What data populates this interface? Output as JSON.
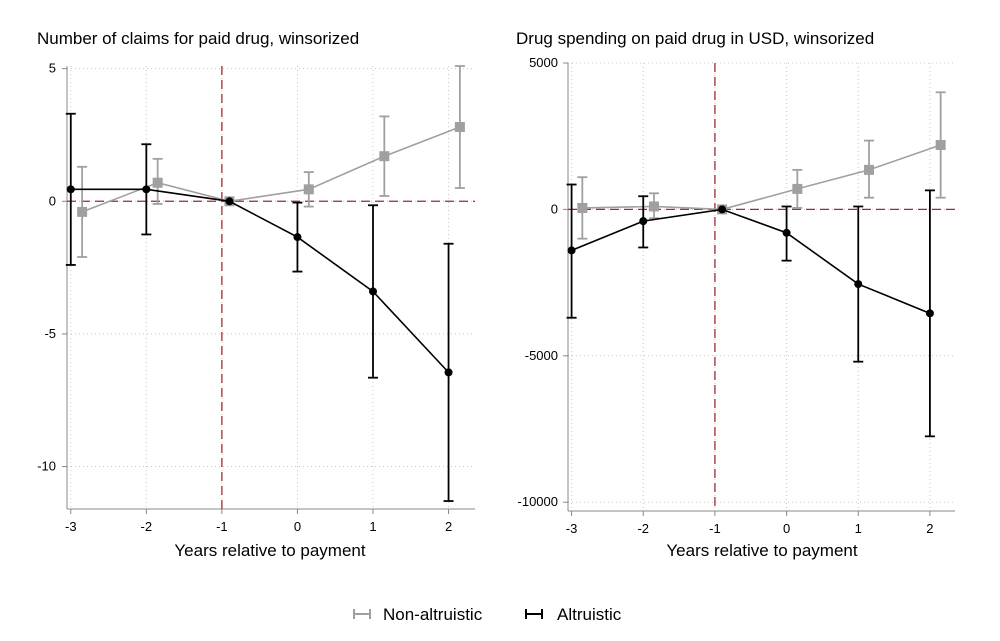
{
  "chart_data": [
    {
      "type": "line",
      "title": "Number of claims for paid drug, winsorized",
      "xlabel": "Years relative to payment",
      "ylabel": "",
      "x": [
        -3,
        -2,
        -1,
        0,
        1,
        2
      ],
      "x_ticks": [
        "-3",
        "-2",
        "-1",
        "0",
        "1",
        "2"
      ],
      "y_ticks": [
        5,
        0,
        -5,
        -10
      ],
      "y_tick_labels": [
        "5",
        "0",
        "-5",
        "-10"
      ],
      "ylim": [
        -11.6,
        5.1
      ],
      "xlim": [
        -3.05,
        2.35
      ],
      "reference_lines": {
        "x": -1,
        "y": 0
      },
      "grid": true,
      "series": [
        {
          "name": "Non-altruistic",
          "color": "#a0a0a0",
          "marker": "square",
          "x_offset": 0.15,
          "values": [
            -0.4,
            0.7,
            0.0,
            0.45,
            1.7,
            2.8
          ],
          "ci_low": [
            -2.1,
            -0.1,
            null,
            -0.2,
            0.2,
            0.5
          ],
          "ci_high": [
            1.3,
            1.6,
            null,
            1.1,
            3.2,
            5.1
          ]
        },
        {
          "name": "Altruistic",
          "color": "#000000",
          "marker": "circle",
          "x_offset": 0.0,
          "values": [
            0.45,
            0.45,
            0.0,
            -1.35,
            -3.4,
            -6.45
          ],
          "ci_low": [
            -2.4,
            -1.25,
            null,
            -2.65,
            -6.65,
            -11.3
          ],
          "ci_high": [
            3.3,
            2.15,
            null,
            -0.05,
            -0.15,
            -1.6
          ]
        }
      ]
    },
    {
      "type": "line",
      "title": "Drug spending on paid drug in USD, winsorized",
      "xlabel": "Years relative to payment",
      "ylabel": "",
      "x": [
        -3,
        -2,
        -1,
        0,
        1,
        2
      ],
      "x_ticks": [
        "-3",
        "-2",
        "-1",
        "0",
        "1",
        "2"
      ],
      "y_ticks": [
        5000,
        0,
        -5000,
        -10000
      ],
      "y_tick_labels": [
        "5000",
        "0",
        "-5000",
        "-10000"
      ],
      "ylim": [
        -10300,
        5000
      ],
      "xlim": [
        -3.05,
        2.35
      ],
      "reference_lines": {
        "x": -1,
        "y": 0
      },
      "grid": true,
      "series": [
        {
          "name": "Non-altruistic",
          "color": "#a0a0a0",
          "marker": "square",
          "x_offset": 0.15,
          "values": [
            50,
            100,
            0,
            700,
            1350,
            2200
          ],
          "ci_low": [
            -1000,
            -300,
            null,
            50,
            400,
            400
          ],
          "ci_high": [
            1100,
            550,
            null,
            1350,
            2350,
            4000
          ]
        },
        {
          "name": "Altruistic",
          "color": "#000000",
          "marker": "circle",
          "x_offset": 0.0,
          "values": [
            -1400,
            -400,
            0,
            -800,
            -2550,
            -3550
          ],
          "ci_low": [
            -3700,
            -1300,
            null,
            -1750,
            -5200,
            -7750
          ],
          "ci_high": [
            850,
            450,
            null,
            100,
            100,
            650
          ]
        }
      ]
    }
  ],
  "legend": {
    "position": "bottom-center",
    "items": [
      {
        "label": "Non-altruistic",
        "color": "#a0a0a0"
      },
      {
        "label": "Altruistic",
        "color": "#000000"
      }
    ]
  },
  "colors": {
    "reference_line": "#a52a2a",
    "grid": "#c8c8c8",
    "axis": "#888888"
  }
}
